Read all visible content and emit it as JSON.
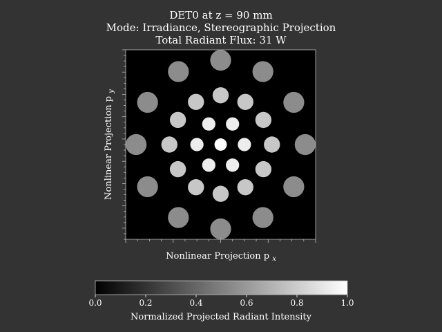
{
  "chart_data": {
    "type": "heatmap",
    "title_lines": [
      "DET0 at z = 90 mm",
      "Mode: Irradiance, Stereographic Projection",
      "Total Radiant Flux: 31 W"
    ],
    "xlabel": "Nonlinear Projection p",
    "xlabel_sub": "x",
    "ylabel": "Nonlinear Projection p",
    "ylabel_sub": "y",
    "grid": false,
    "colormap": "gray",
    "background_value": 0.0,
    "colorbar": {
      "label": "Normalized Projected Radiant Intensity",
      "range": [
        0.0,
        1.0
      ],
      "ticks": [
        "0.0",
        "0.2",
        "0.4",
        "0.6",
        "0.8",
        "1.0"
      ],
      "placement": "bottom"
    },
    "xlim": [
      -1.0,
      1.0
    ],
    "ylim": [
      -1.0,
      1.0
    ],
    "spots": [
      {
        "x": 0.0,
        "y": 0.0,
        "r": 0.065,
        "value": 1.0
      },
      {
        "x": 0.25,
        "y": 0.0,
        "r": 0.07,
        "value": 0.93
      },
      {
        "x": -0.25,
        "y": 0.0,
        "r": 0.07,
        "value": 0.93
      },
      {
        "x": 0.125,
        "y": 0.217,
        "r": 0.07,
        "value": 0.93
      },
      {
        "x": -0.125,
        "y": 0.217,
        "r": 0.07,
        "value": 0.93
      },
      {
        "x": 0.125,
        "y": -0.217,
        "r": 0.07,
        "value": 0.93
      },
      {
        "x": -0.125,
        "y": -0.217,
        "r": 0.07,
        "value": 0.93
      },
      {
        "x": 0.0,
        "y": 0.52,
        "r": 0.085,
        "value": 0.78
      },
      {
        "x": 0.0,
        "y": -0.52,
        "r": 0.085,
        "value": 0.78
      },
      {
        "x": 0.26,
        "y": 0.45,
        "r": 0.085,
        "value": 0.78
      },
      {
        "x": -0.26,
        "y": 0.45,
        "r": 0.085,
        "value": 0.78
      },
      {
        "x": 0.26,
        "y": -0.45,
        "r": 0.085,
        "value": 0.78
      },
      {
        "x": -0.26,
        "y": -0.45,
        "r": 0.085,
        "value": 0.78
      },
      {
        "x": 0.45,
        "y": 0.26,
        "r": 0.085,
        "value": 0.78
      },
      {
        "x": -0.45,
        "y": 0.26,
        "r": 0.085,
        "value": 0.78
      },
      {
        "x": 0.45,
        "y": -0.26,
        "r": 0.085,
        "value": 0.78
      },
      {
        "x": -0.45,
        "y": -0.26,
        "r": 0.085,
        "value": 0.78
      },
      {
        "x": 0.54,
        "y": 0.0,
        "r": 0.085,
        "value": 0.78
      },
      {
        "x": -0.54,
        "y": 0.0,
        "r": 0.085,
        "value": 0.78
      },
      {
        "x": 0.0,
        "y": 0.89,
        "r": 0.11,
        "value": 0.55
      },
      {
        "x": 0.0,
        "y": -0.89,
        "r": 0.11,
        "value": 0.55
      },
      {
        "x": 0.445,
        "y": 0.77,
        "r": 0.11,
        "value": 0.55
      },
      {
        "x": -0.445,
        "y": 0.77,
        "r": 0.11,
        "value": 0.55
      },
      {
        "x": 0.445,
        "y": -0.77,
        "r": 0.11,
        "value": 0.55
      },
      {
        "x": -0.445,
        "y": -0.77,
        "r": 0.11,
        "value": 0.55
      },
      {
        "x": 0.77,
        "y": 0.445,
        "r": 0.11,
        "value": 0.55
      },
      {
        "x": -0.77,
        "y": 0.445,
        "r": 0.11,
        "value": 0.55
      },
      {
        "x": 0.77,
        "y": -0.445,
        "r": 0.11,
        "value": 0.55
      },
      {
        "x": -0.77,
        "y": -0.445,
        "r": 0.11,
        "value": 0.55
      },
      {
        "x": 0.89,
        "y": 0.0,
        "r": 0.11,
        "value": 0.55
      },
      {
        "x": -0.89,
        "y": 0.0,
        "r": 0.11,
        "value": 0.55
      }
    ]
  }
}
